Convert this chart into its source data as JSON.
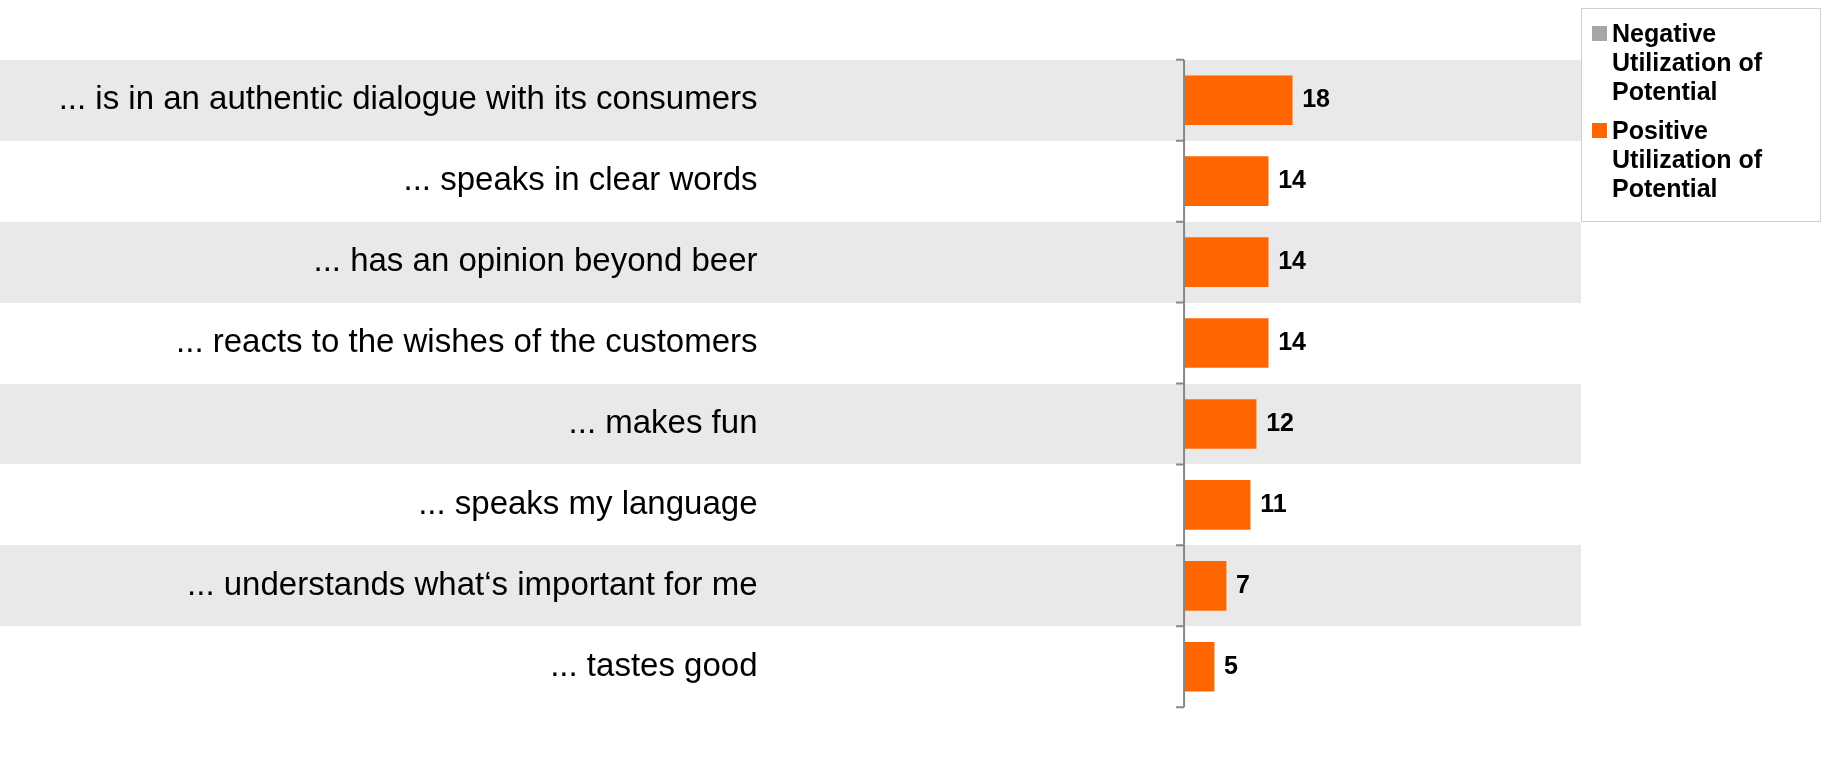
{
  "chart_data": {
    "type": "bar",
    "orientation": "horizontal",
    "categories": [
      "... is in an authentic dialogue with its consumers",
      "... speaks in clear words",
      "... has an opinion beyond beer",
      "... reacts to the wishes of the customers",
      "... makes fun",
      "... speaks my language",
      "... understands what‘s important for me",
      "... tastes good"
    ],
    "series": [
      {
        "name": "Negative Utilization of Potential",
        "color": "#a6a6a6",
        "values": [
          null,
          null,
          null,
          null,
          null,
          null,
          null,
          null
        ]
      },
      {
        "name": "Positive Utilization of Potential",
        "color": "#ff6600",
        "values": [
          18,
          14,
          14,
          14,
          12,
          11,
          7,
          5
        ]
      }
    ],
    "data_labels": true,
    "legend": "top right",
    "grid": false
  }
}
